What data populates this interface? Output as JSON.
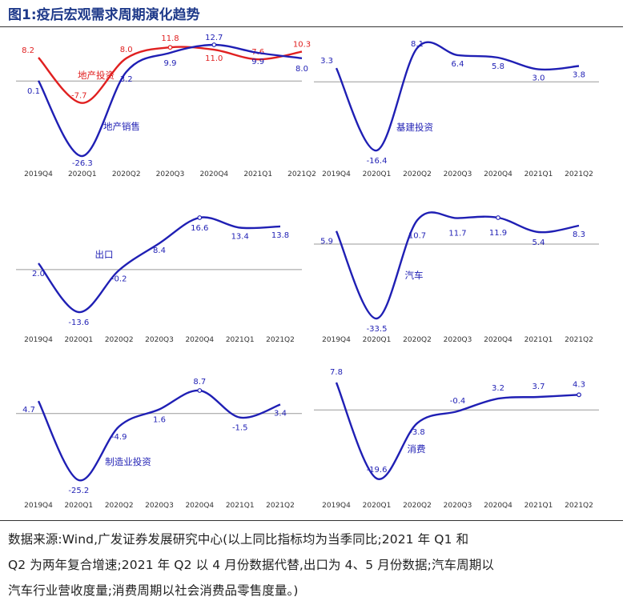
{
  "figure": {
    "title": "图1:疫后宏观需求周期演化趋势"
  },
  "note": {
    "line1": "数据来源:Wind,广发证券发展研究中心(以上同比指标均为当季同比;2021 年 Q1 和",
    "line2": "Q2 为两年复合增速;2021 年 Q2 以 4 月份数据代替,出口为 4、5 月份数据;汽车周期以",
    "line3": "汽车行业营收度量;消费周期以社会消费品零售度量。)"
  },
  "colors": {
    "blue": "#1f1fb4",
    "red": "#e02020",
    "axis": "#999999",
    "text_blue": "#1f1fb4"
  },
  "chart_data": [
    {
      "type": "line",
      "categories": [
        "2019Q4",
        "2020Q1",
        "2020Q2",
        "2020Q3",
        "2020Q4",
        "2021Q1",
        "2021Q2"
      ],
      "ylim": [
        -30,
        15
      ],
      "series": [
        {
          "name": "地产投资",
          "color": "#e02020",
          "values": [
            8.2,
            -7.7,
            8.0,
            11.8,
            11.0,
            7.6,
            10.3
          ],
          "labels": [
            "8.2",
            "-7.7",
            "8.0",
            "11.8",
            "11.0",
            "7.6",
            "10.3"
          ]
        },
        {
          "name": "地产销售",
          "color": "#1f1fb4",
          "values": [
            0.1,
            -26.3,
            3.2,
            9.9,
            12.7,
            9.9,
            8.0
          ],
          "labels": [
            "0.1",
            "-26.3",
            "3.2",
            "9.9",
            "12.7",
            "9.9",
            "8.0"
          ]
        }
      ]
    },
    {
      "type": "line",
      "categories": [
        "2019Q4",
        "2020Q1",
        "2020Q2",
        "2020Q3",
        "2020Q4",
        "2021Q1",
        "2021Q2"
      ],
      "ylim": [
        -20,
        12
      ],
      "series": [
        {
          "name": "基建投资",
          "color": "#1f1fb4",
          "values": [
            3.3,
            -16.4,
            8.1,
            6.4,
            5.8,
            3.0,
            3.8
          ],
          "labels": [
            "3.3",
            "-16.4",
            "8.1",
            "6.4",
            "5.8",
            "3.0",
            "3.8"
          ]
        }
      ]
    },
    {
      "type": "line",
      "categories": [
        "2019Q4",
        "2020Q1",
        "2020Q2",
        "2020Q3",
        "2020Q4",
        "2021Q1",
        "2021Q2"
      ],
      "ylim": [
        -18,
        20
      ],
      "series": [
        {
          "name": "出口",
          "color": "#1f1fb4",
          "values": [
            2.0,
            -13.6,
            -0.2,
            8.4,
            16.6,
            13.4,
            13.8
          ],
          "labels": [
            "2.0",
            "-13.6",
            "-0.2",
            "8.4",
            "16.6",
            "13.4",
            "13.8"
          ]
        }
      ]
    },
    {
      "type": "line",
      "categories": [
        "2019Q4",
        "2020Q1",
        "2020Q2",
        "2020Q3",
        "2020Q4",
        "2021Q1",
        "2021Q2"
      ],
      "ylim": [
        -38,
        16
      ],
      "series": [
        {
          "name": "汽车",
          "color": "#1f1fb4",
          "values": [
            5.9,
            -33.5,
            10.7,
            11.7,
            11.9,
            5.4,
            8.3
          ],
          "labels": [
            "5.9",
            "-33.5",
            "10.7",
            "11.7",
            "11.9",
            "5.4",
            "8.3"
          ]
        }
      ]
    },
    {
      "type": "line",
      "categories": [
        "2019Q4",
        "2020Q1",
        "2020Q2",
        "2020Q3",
        "2020Q4",
        "2021Q1",
        "2021Q2"
      ],
      "ylim": [
        -30,
        12
      ],
      "series": [
        {
          "name": "制造业投资",
          "color": "#1f1fb4",
          "values": [
            4.7,
            -25.2,
            -4.9,
            1.6,
            8.7,
            -1.5,
            3.4
          ],
          "labels": [
            "4.7",
            "-25.2",
            "-4.9",
            "1.6",
            "8.7",
            "-1.5",
            "3.4"
          ]
        }
      ]
    },
    {
      "type": "line",
      "categories": [
        "2019Q4",
        "2020Q1",
        "2020Q2",
        "2020Q3",
        "2020Q4",
        "2021Q1",
        "2021Q2"
      ],
      "ylim": [
        -24,
        10
      ],
      "series": [
        {
          "name": "消费",
          "color": "#1f1fb4",
          "values": [
            7.8,
            -19.6,
            -3.8,
            -0.4,
            3.2,
            3.7,
            4.3
          ],
          "labels": [
            "7.8",
            "-19.6",
            "-3.8",
            "-0.4",
            "3.2",
            "3.7",
            "4.3"
          ]
        }
      ]
    }
  ]
}
